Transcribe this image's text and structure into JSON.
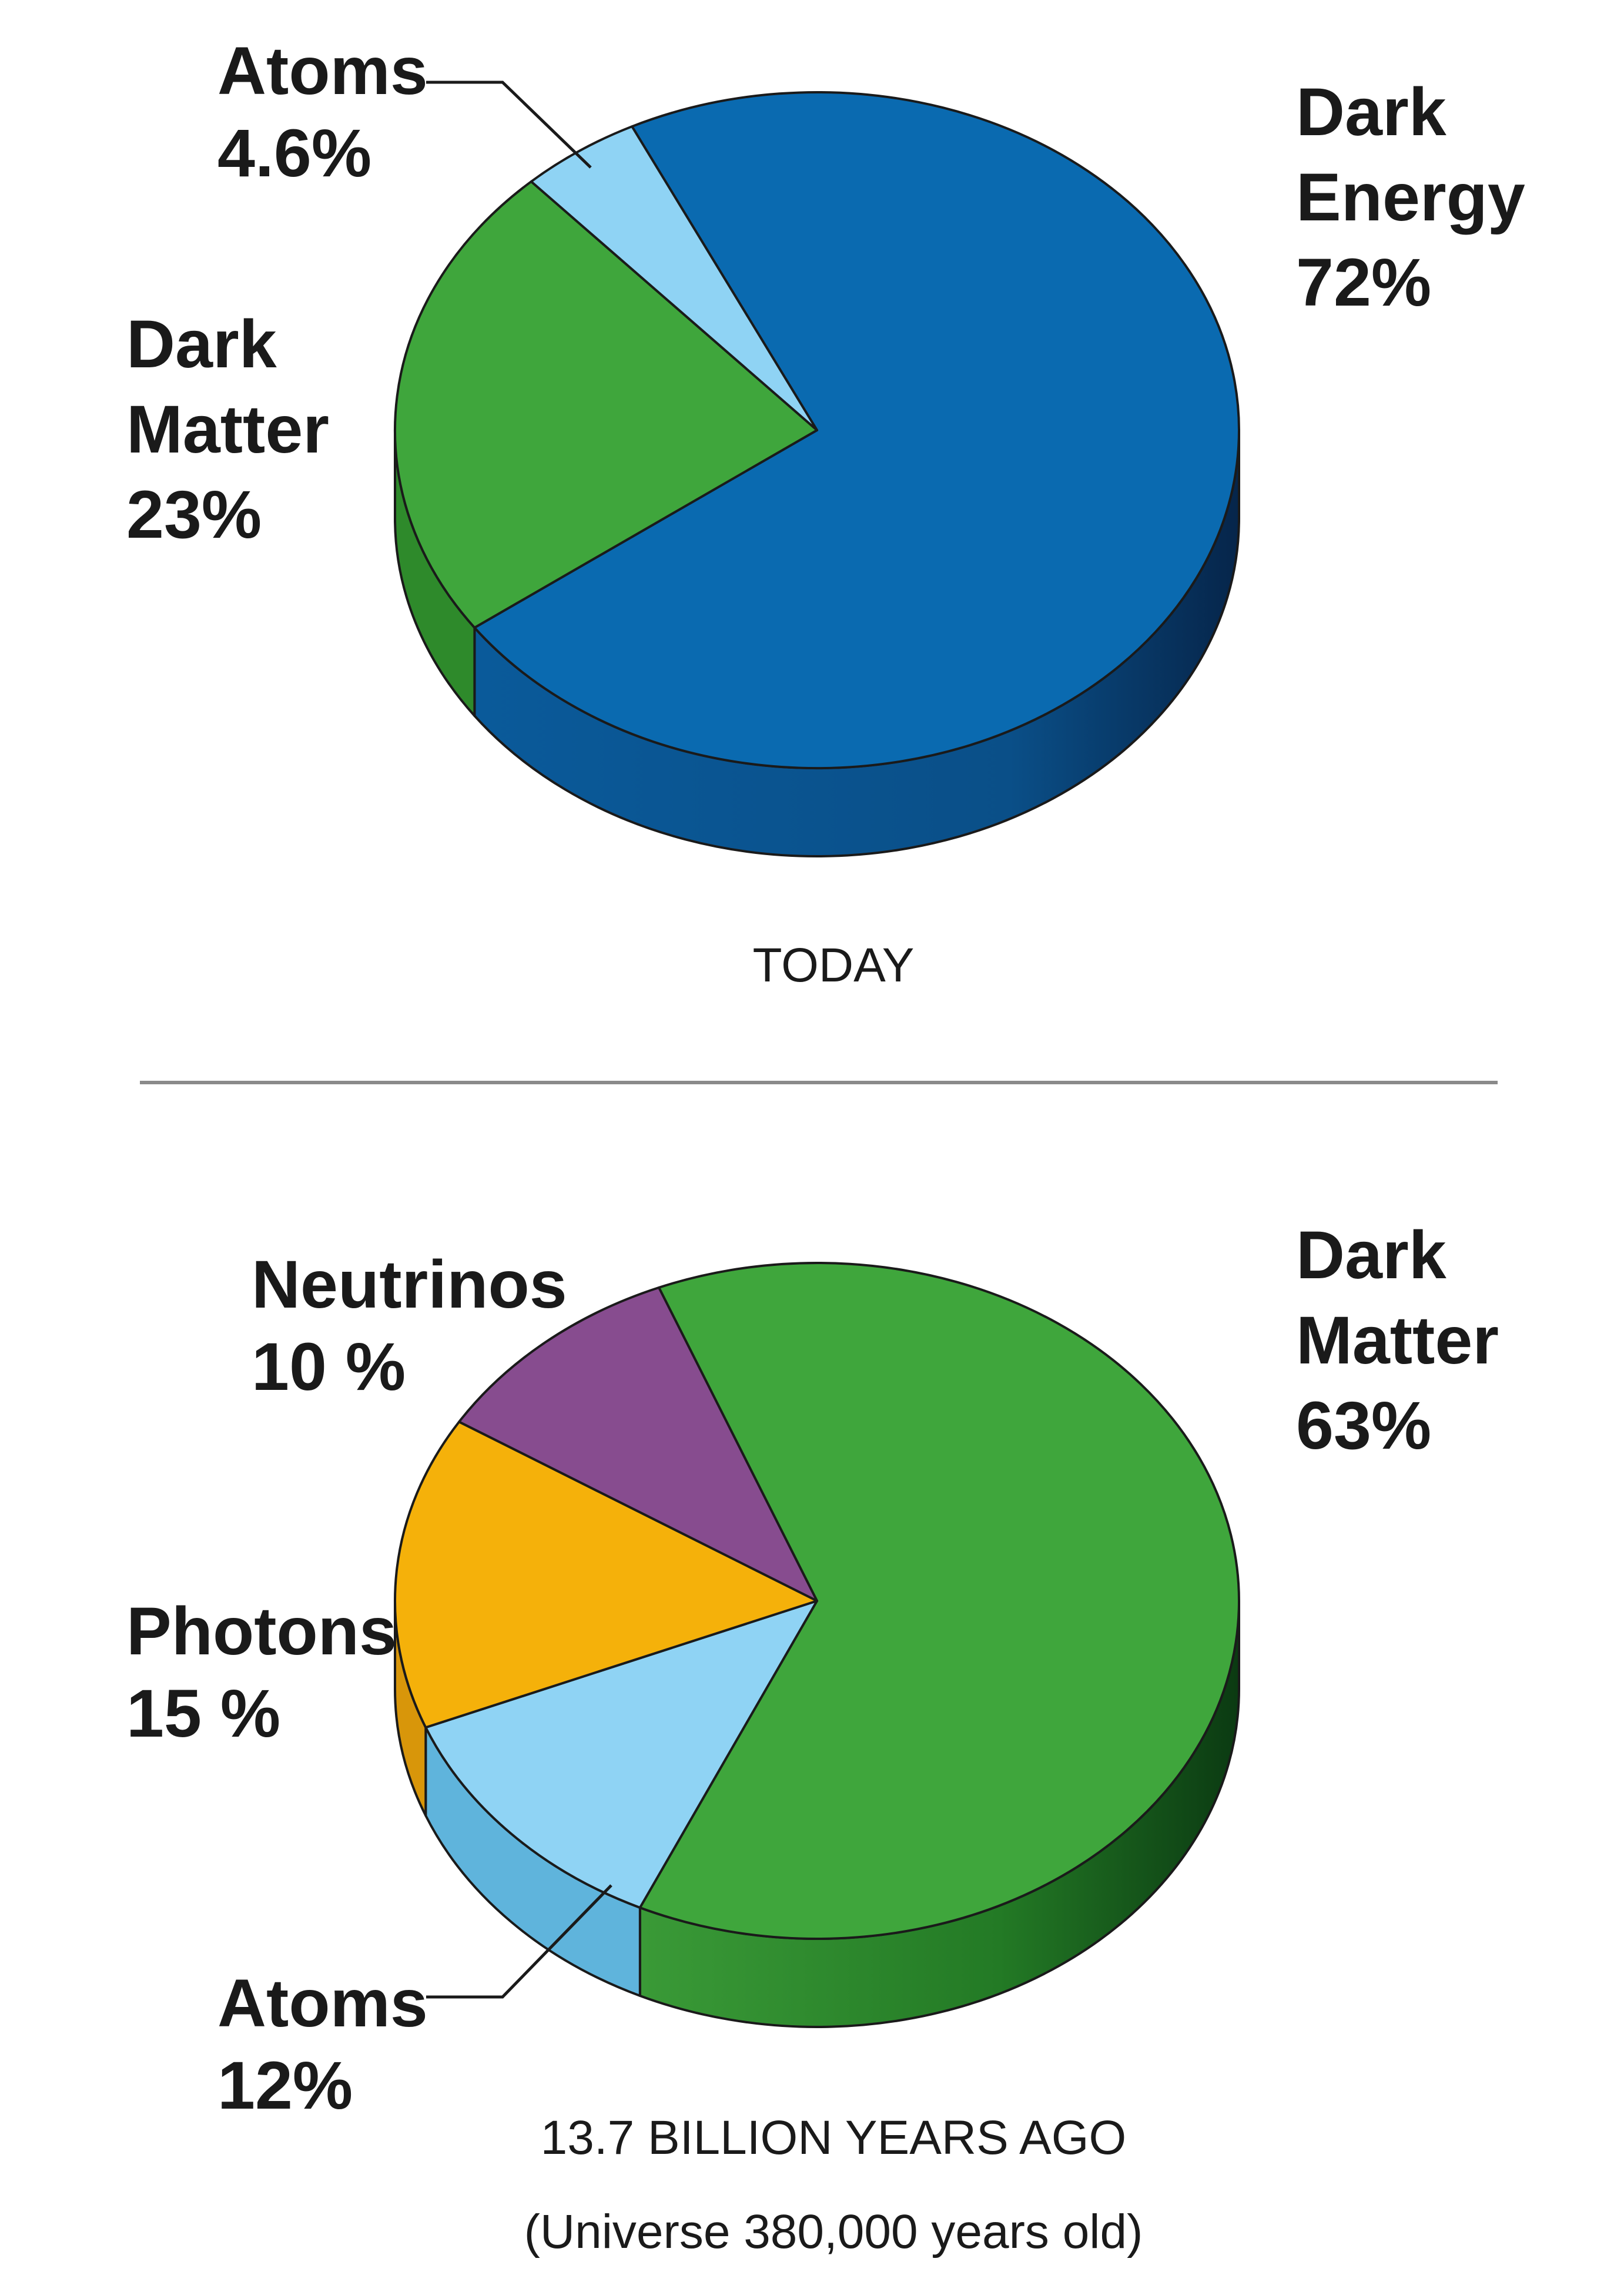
{
  "chart_data": [
    {
      "type": "pie",
      "caption": "TODAY",
      "slices": [
        {
          "name": "Dark Energy",
          "value": 72,
          "label_lines": [
            "Dark",
            "Energy",
            "72%"
          ],
          "color": "#0a6ab0",
          "side_color": "#0a4f88"
        },
        {
          "name": "Dark Matter",
          "value": 23,
          "label_lines": [
            "Dark",
            "Matter",
            " 23%"
          ],
          "color": "#3fa63c",
          "side_color": "#2e8a2b"
        },
        {
          "name": "Atoms",
          "value": 4.6,
          "label_lines": [
            "Atoms",
            "4.6%"
          ],
          "color": "#8fd3f4",
          "side_color": "#5fb4dc"
        }
      ]
    },
    {
      "type": "pie",
      "caption": [
        "13.7 BILLION YEARS AGO",
        "(Universe 380,000 years old)"
      ],
      "slices": [
        {
          "name": "Dark Matter",
          "value": 63,
          "label_lines": [
            "Dark",
            "Matter",
            "63%"
          ],
          "color": "#3fa63c",
          "side_color": "#1f6e22"
        },
        {
          "name": "Atoms",
          "value": 12,
          "label_lines": [
            "Atoms",
            "12%"
          ],
          "color": "#8fd3f4",
          "side_color": "#5fb4dc"
        },
        {
          "name": "Photons",
          "value": 15,
          "label_lines": [
            "Photons",
            "15 %"
          ],
          "color": "#f5b10a",
          "side_color": "#d8960a"
        },
        {
          "name": "Neutrinos",
          "value": 10,
          "label_lines": [
            "Neutrinos",
            "10 %"
          ],
          "color": "#874c8f",
          "side_color": "#6a3a71"
        }
      ]
    }
  ]
}
